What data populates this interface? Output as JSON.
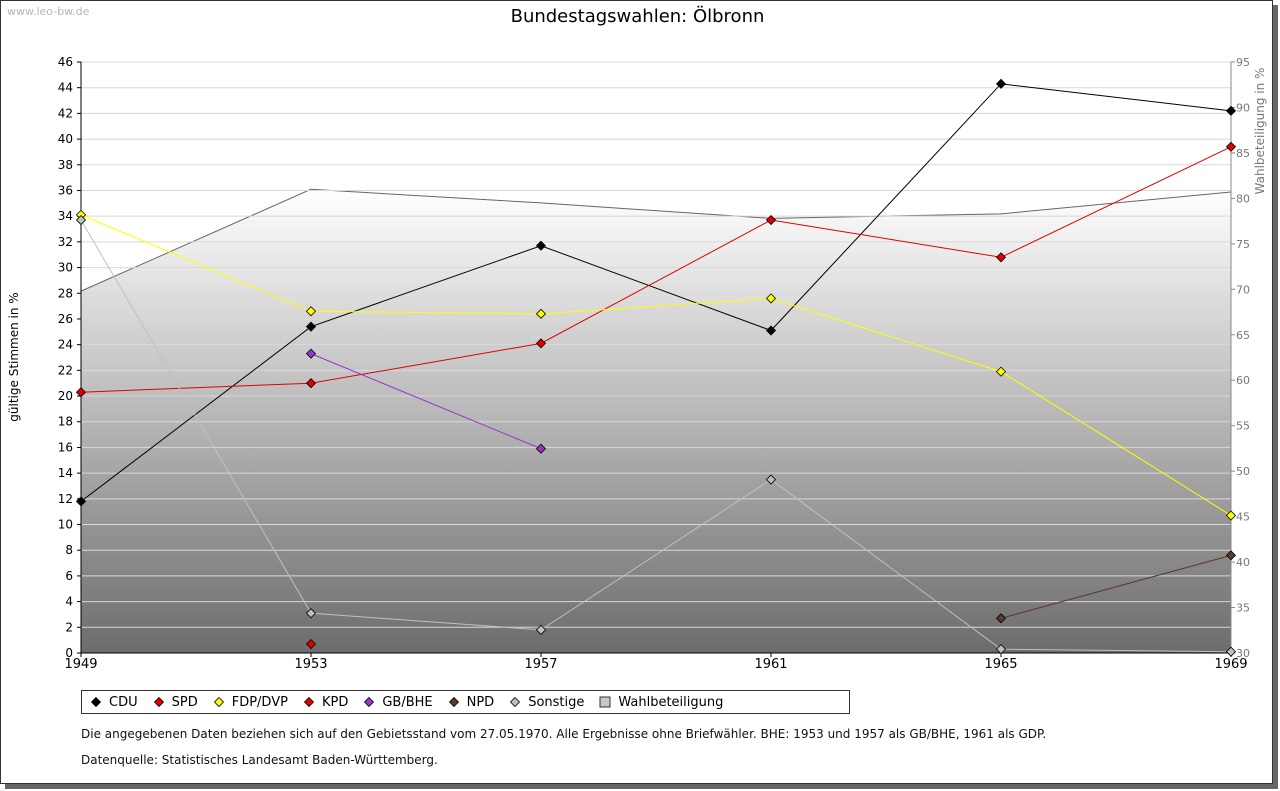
{
  "watermark": "www.leo-bw.de",
  "chart_data": {
    "type": "line",
    "title": "Bundestagswahlen: Ölbronn",
    "ylabel": "gültige Stimmen in %",
    "y2label": "Wahlbeteiligung in %",
    "xlabel": "",
    "x": [
      "1949",
      "1953",
      "1957",
      "1961",
      "1965",
      "1969"
    ],
    "ylim": [
      0,
      46
    ],
    "y_ticks": [
      0,
      2,
      4,
      6,
      8,
      10,
      12,
      14,
      16,
      18,
      20,
      22,
      24,
      26,
      28,
      30,
      32,
      34,
      36,
      38,
      40,
      42,
      44,
      46
    ],
    "y2lim": [
      30,
      95
    ],
    "y2_ticks": [
      30,
      35,
      40,
      45,
      50,
      55,
      60,
      65,
      70,
      75,
      80,
      85,
      90,
      95
    ],
    "grid": true,
    "legend_position": "bottom",
    "series": [
      {
        "name": "CDU",
        "color": "#000000",
        "values": [
          11.8,
          25.4,
          31.7,
          25.1,
          44.3,
          42.2
        ]
      },
      {
        "name": "SPD",
        "color": "#e00000",
        "values": [
          20.3,
          21.0,
          24.1,
          33.7,
          30.8,
          39.4
        ]
      },
      {
        "name": "FDP/DVP",
        "color": "#ffff00",
        "values": [
          34.1,
          26.6,
          26.4,
          27.6,
          21.9,
          10.7
        ]
      },
      {
        "name": "KPD",
        "color": "#e00000",
        "values": [
          null,
          0.7,
          null,
          null,
          null,
          null
        ]
      },
      {
        "name": "GB/BHE",
        "color": "#9933cc",
        "values": [
          null,
          23.3,
          15.9,
          null,
          null,
          null
        ]
      },
      {
        "name": "NPD",
        "color": "#5a3a2a",
        "values": [
          null,
          null,
          null,
          null,
          2.7,
          7.6
        ]
      },
      {
        "name": "Sonstige",
        "color": "#c0c0c0",
        "values": [
          33.7,
          3.1,
          1.8,
          13.5,
          0.3,
          0.1
        ]
      }
    ],
    "turnout": {
      "name": "Wahlbeteiligung",
      "color": "#666666",
      "values": [
        69.8,
        81.0,
        79.5,
        77.8,
        78.3,
        80.7
      ]
    }
  },
  "footer": {
    "note": "Die angegebenen Daten beziehen sich auf den Gebietsstand vom 27.05.1970. Alle Ergebnisse ohne Briefwähler. BHE: 1953 und 1957 als GB/BHE, 1961 als GDP.",
    "source": "Datenquelle: Statistisches Landesamt Baden-Württemberg."
  }
}
